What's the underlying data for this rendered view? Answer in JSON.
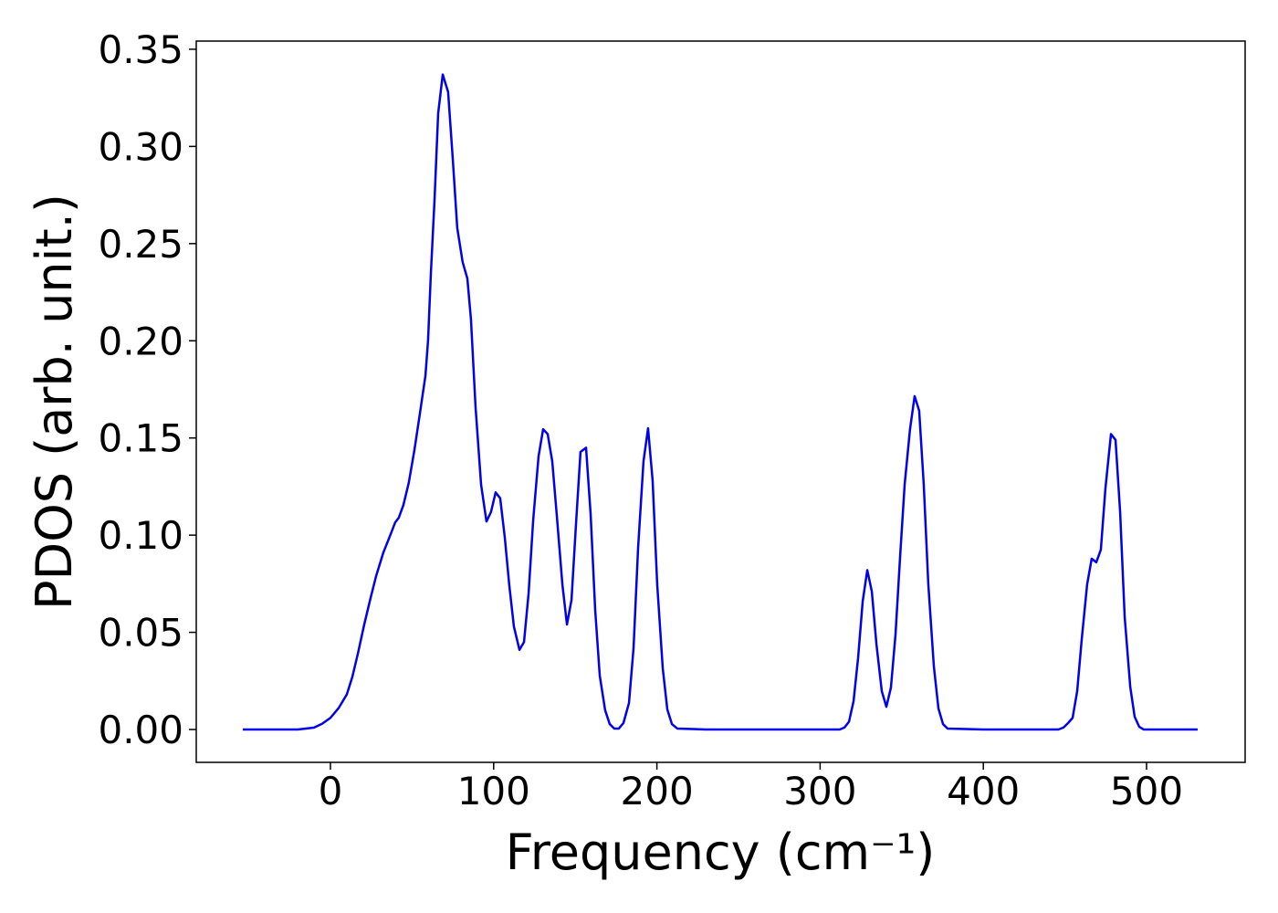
{
  "chart_data": {
    "type": "line",
    "xlabel": "Frequency (cm⁻¹)",
    "ylabel": "PDOS (arb. unit.)",
    "color": "#0000ee",
    "xlim": [
      -82.2,
      560.4
    ],
    "ylim": [
      -0.0169,
      0.3542
    ],
    "xticks": [
      0,
      100,
      200,
      300,
      400,
      500
    ],
    "yticks": [
      {
        "value": 0,
        "label": "0.00"
      },
      {
        "value": 0.05,
        "label": "0.05"
      },
      {
        "value": 0.1,
        "label": "0.10"
      },
      {
        "value": 0.15,
        "label": "0.15"
      },
      {
        "value": 0.2,
        "label": "0.20"
      },
      {
        "value": 0.25,
        "label": "0.25"
      },
      {
        "value": 0.3,
        "label": "0.30"
      },
      {
        "value": 0.35,
        "label": "0.35"
      }
    ],
    "grid": false,
    "x": [
      -53.7,
      -20,
      -15,
      -10,
      -5,
      0,
      5,
      10,
      13.4,
      16.8,
      20.7,
      24.6,
      28,
      32.4,
      36.9,
      39.7,
      41.9,
      44.7,
      48,
      51.5,
      54.8,
      58.2,
      59.8,
      61.5,
      63.8,
      66,
      68.8,
      72.1,
      75,
      77.7,
      81,
      83.9,
      86.1,
      88.9,
      92.3,
      95.6,
      98.4,
      101.2,
      104,
      106.8,
      109.6,
      112.4,
      115.8,
      118.6,
      121.4,
      124.2,
      127.5,
      130.3,
      133.1,
      135.9,
      138.7,
      142.1,
      144.9,
      147.7,
      150.4,
      153.2,
      156.6,
      159.4,
      162.2,
      165,
      168.3,
      171.1,
      173.9,
      176.7,
      179.5,
      182.9,
      185.7,
      188.5,
      191.8,
      194.6,
      197.4,
      200.2,
      203.6,
      206.4,
      209.2,
      212.5,
      230,
      260,
      290,
      312,
      314.9,
      317.7,
      320.5,
      323.3,
      326.1,
      328.9,
      331.7,
      334.5,
      337.8,
      340.6,
      343.4,
      346.2,
      349,
      351.8,
      355.1,
      357.9,
      360.7,
      363.5,
      366.3,
      369.7,
      372.5,
      375.3,
      378.1,
      400,
      430,
      446,
      449.1,
      451.9,
      454.7,
      457.5,
      460.3,
      463.6,
      466.4,
      469.2,
      472,
      474.8,
      478.2,
      481,
      483.8,
      486.6,
      490,
      492.7,
      495.5,
      498.3,
      510,
      531.3
    ],
    "values": [
      0,
      0,
      0.0005,
      0.001,
      0.003,
      0.006,
      0.011,
      0.018,
      0.027,
      0.039,
      0.054,
      0.0677,
      0.079,
      0.091,
      0.1005,
      0.1066,
      0.109,
      0.1155,
      0.127,
      0.144,
      0.1625,
      0.182,
      0.2,
      0.234,
      0.273,
      0.317,
      0.337,
      0.328,
      0.293,
      0.258,
      0.2405,
      0.232,
      0.211,
      0.166,
      0.126,
      0.107,
      0.112,
      0.122,
      0.119,
      0.099,
      0.074,
      0.053,
      0.041,
      0.045,
      0.07,
      0.1075,
      0.1405,
      0.1545,
      0.152,
      0.138,
      0.11,
      0.0747,
      0.054,
      0.0667,
      0.105,
      0.1428,
      0.145,
      0.111,
      0.0615,
      0.0277,
      0.0099,
      0.0028,
      0.0005,
      0.0005,
      0.0033,
      0.0136,
      0.0418,
      0.0935,
      0.138,
      0.155,
      0.128,
      0.0747,
      0.0315,
      0.0103,
      0.0028,
      0.0005,
      0,
      0,
      0,
      0,
      0.001,
      0.004,
      0.0146,
      0.037,
      0.066,
      0.082,
      0.071,
      0.044,
      0.0197,
      0.0117,
      0.0216,
      0.0489,
      0.0888,
      0.126,
      0.1546,
      0.1715,
      0.164,
      0.126,
      0.0747,
      0.0324,
      0.0108,
      0.0028,
      0.0005,
      0,
      0,
      0,
      0.001,
      0.0033,
      0.006,
      0.0197,
      0.0465,
      0.0747,
      0.0879,
      0.086,
      0.0925,
      0.124,
      0.152,
      0.149,
      0.112,
      0.058,
      0.022,
      0.0066,
      0.0014,
      0,
      0,
      0
    ]
  }
}
